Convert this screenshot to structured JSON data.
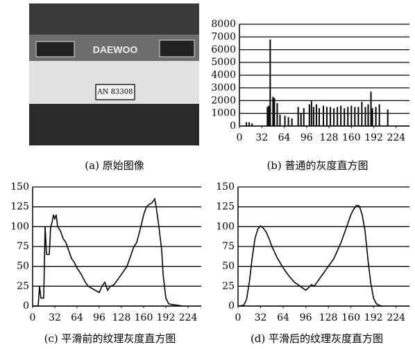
{
  "image": {
    "caption": "(a) 原始图像",
    "logo": "DAEWOO",
    "plate": "AN 83308"
  },
  "chart_data": [
    {
      "type": "bar",
      "caption": "(b) 普通的灰度直方图",
      "x": [
        10,
        14,
        18,
        40,
        42,
        44,
        48,
        50,
        54,
        58,
        65,
        70,
        75,
        84,
        88,
        92,
        100,
        103,
        106,
        110,
        114,
        120,
        125,
        130,
        135,
        140,
        145,
        150,
        155,
        160,
        165,
        170,
        175,
        180,
        184,
        188,
        190,
        195,
        200,
        212
      ],
      "values": [
        300,
        300,
        200,
        1500,
        1600,
        6800,
        2300,
        2200,
        1800,
        900,
        800,
        700,
        600,
        1500,
        1000,
        1400,
        1700,
        2000,
        1500,
        1700,
        1400,
        1600,
        1500,
        1500,
        1400,
        1500,
        1600,
        1400,
        1500,
        1600,
        1500,
        1500,
        1900,
        1500,
        1700,
        2700,
        1400,
        1500,
        1700,
        1300
      ],
      "color": "#000000",
      "xlim": [
        0,
        243
      ],
      "ylim": [
        0,
        8000
      ],
      "xticks": [
        0,
        32,
        64,
        96,
        128,
        160,
        192,
        224
      ],
      "yticks": [
        0,
        1000,
        2000,
        3000,
        4000,
        5000,
        6000,
        7000,
        8000
      ],
      "grid": true
    },
    {
      "type": "line",
      "caption": "(c) 平滑前的纹理灰度直方图",
      "x": [
        0,
        8,
        10,
        12,
        16,
        18,
        20,
        24,
        26,
        28,
        30,
        32,
        34,
        36,
        40,
        44,
        48,
        52,
        56,
        60,
        64,
        70,
        76,
        80,
        86,
        90,
        96,
        100,
        104,
        108,
        112,
        116,
        120,
        128,
        136,
        140,
        146,
        150,
        156,
        160,
        164,
        168,
        172,
        176,
        178,
        182,
        186,
        188,
        192,
        196,
        200,
        210,
        216
      ],
      "values": [
        0,
        0,
        25,
        10,
        10,
        100,
        65,
        65,
        100,
        105,
        115,
        110,
        115,
        100,
        95,
        85,
        80,
        70,
        60,
        55,
        48,
        40,
        30,
        25,
        22,
        20,
        17,
        25,
        30,
        20,
        25,
        26,
        30,
        40,
        50,
        60,
        75,
        80,
        100,
        115,
        125,
        128,
        130,
        135,
        125,
        100,
        70,
        40,
        10,
        3,
        2,
        1,
        0
      ],
      "color": "#000000",
      "xlim": [
        0,
        243
      ],
      "ylim": [
        0,
        150
      ],
      "xticks": [
        0,
        32,
        64,
        96,
        128,
        160,
        192,
        224
      ],
      "yticks": [
        0,
        25,
        50,
        75,
        100,
        125,
        150
      ],
      "grid": true
    },
    {
      "type": "line",
      "caption": "(d) 平滑后的纹理灰度直方图",
      "x": [
        0,
        8,
        12,
        16,
        20,
        24,
        28,
        32,
        36,
        40,
        44,
        48,
        56,
        64,
        72,
        80,
        88,
        96,
        100,
        104,
        108,
        112,
        120,
        128,
        136,
        140,
        146,
        152,
        156,
        160,
        164,
        168,
        172,
        176,
        180,
        184,
        188,
        192,
        196,
        200,
        204
      ],
      "values": [
        0,
        1,
        8,
        30,
        60,
        85,
        97,
        101,
        98,
        93,
        85,
        75,
        60,
        48,
        38,
        30,
        25,
        20,
        23,
        27,
        25,
        30,
        40,
        50,
        60,
        68,
        80,
        95,
        105,
        115,
        122,
        127,
        126,
        115,
        95,
        60,
        30,
        10,
        3,
        1,
        0
      ],
      "color": "#000000",
      "xlim": [
        0,
        243
      ],
      "ylim": [
        0,
        150
      ],
      "xticks": [
        0,
        32,
        64,
        96,
        128,
        160,
        192,
        224
      ],
      "yticks": [
        0,
        25,
        50,
        75,
        100,
        125,
        150
      ],
      "grid": true
    }
  ]
}
